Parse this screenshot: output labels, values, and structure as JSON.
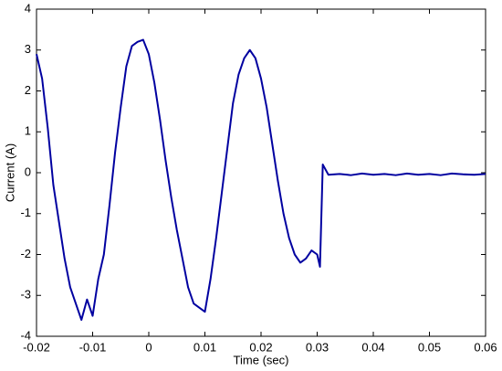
{
  "chart_data": {
    "type": "line",
    "x_label": "Time (sec)",
    "y_label": "Current (A)",
    "color": "#0000a0",
    "x": [
      -0.02,
      -0.019,
      -0.018,
      -0.017,
      -0.016,
      -0.015,
      -0.014,
      -0.013,
      -0.012,
      -0.011,
      -0.01,
      -0.009,
      -0.008,
      -0.007,
      -0.006,
      -0.005,
      -0.004,
      -0.003,
      -0.002,
      -0.001,
      0,
      0.001,
      0.002,
      0.003,
      0.004,
      0.005,
      0.006,
      0.007,
      0.008,
      0.009,
      0.01,
      0.011,
      0.012,
      0.013,
      0.014,
      0.015,
      0.016,
      0.017,
      0.018,
      0.019,
      0.02,
      0.021,
      0.022,
      0.023,
      0.024,
      0.025,
      0.026,
      0.027,
      0.028,
      0.029,
      0.03,
      0.0305,
      0.031,
      0.032,
      0.034,
      0.036,
      0.038,
      0.04,
      0.042,
      0.044,
      0.046,
      0.048,
      0.05,
      0.052,
      0.054,
      0.056,
      0.058,
      0.06
    ],
    "values": [
      2.9,
      2.3,
      1.1,
      -0.3,
      -1.2,
      -2.1,
      -2.8,
      -3.2,
      -3.6,
      -3.1,
      -3.5,
      -2.6,
      -2.0,
      -0.8,
      0.5,
      1.6,
      2.6,
      3.1,
      3.2,
      3.25,
      2.9,
      2.2,
      1.3,
      0.3,
      -0.6,
      -1.4,
      -2.1,
      -2.8,
      -3.2,
      -3.3,
      -3.4,
      -2.6,
      -1.6,
      -0.5,
      0.6,
      1.7,
      2.4,
      2.8,
      3.0,
      2.8,
      2.3,
      1.6,
      0.7,
      -0.2,
      -1.0,
      -1.6,
      -2.0,
      -2.2,
      -2.1,
      -1.9,
      -2.0,
      -2.3,
      0.2,
      -0.05,
      -0.03,
      -0.06,
      -0.02,
      -0.05,
      -0.03,
      -0.06,
      -0.02,
      -0.05,
      -0.03,
      -0.06,
      -0.02,
      -0.04,
      -0.05,
      -0.03
    ],
    "xlim": [
      -0.02,
      0.06
    ],
    "xticks": [
      -0.02,
      -0.01,
      0,
      0.01,
      0.02,
      0.03,
      0.04,
      0.05,
      0.06
    ],
    "ylim": [
      -4,
      4
    ],
    "yticks": [
      -4,
      -3,
      -2,
      -1,
      0,
      1,
      2,
      3,
      4
    ]
  }
}
